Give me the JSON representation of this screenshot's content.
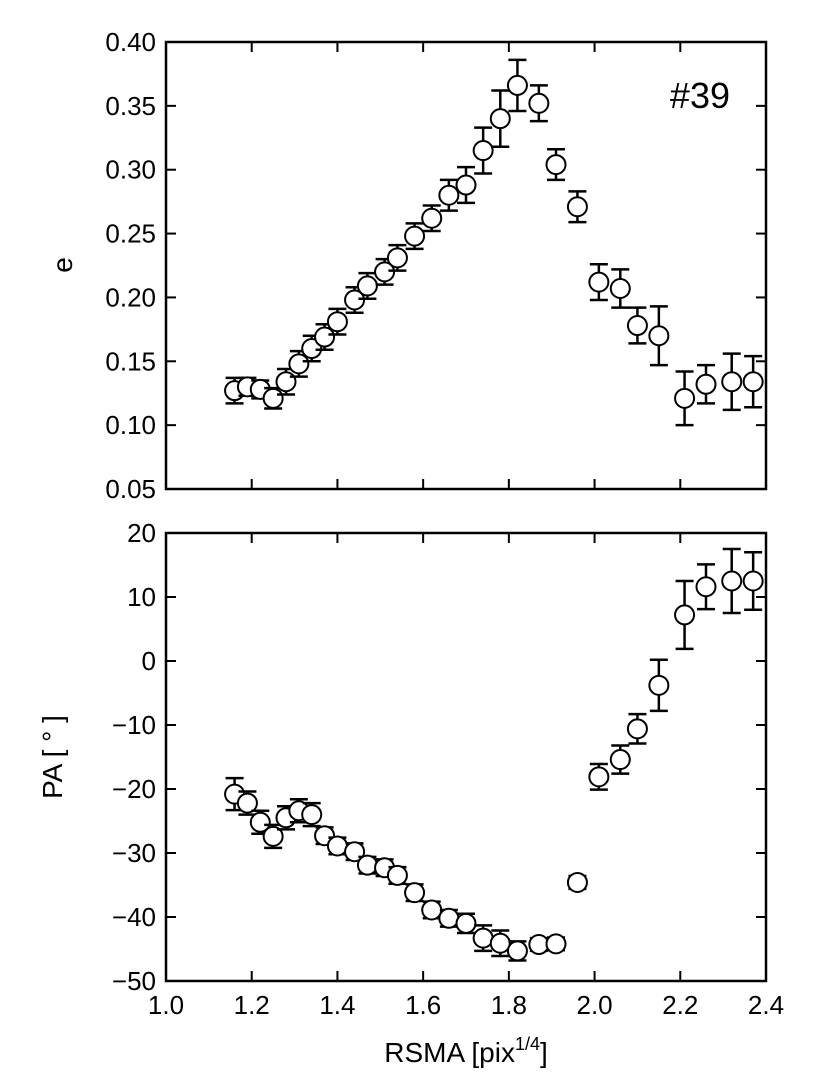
{
  "chart_data": [
    {
      "type": "scatter",
      "annotation": "#39",
      "ylabel": "e",
      "xlim": [
        1.0,
        2.4
      ],
      "ylim": [
        0.05,
        0.4
      ],
      "yticks": [
        "0.05",
        "0.10",
        "0.15",
        "0.20",
        "0.25",
        "0.30",
        "0.35",
        "0.40"
      ],
      "points": [
        {
          "x": 1.16,
          "y": 0.127,
          "err": 0.01
        },
        {
          "x": 1.19,
          "y": 0.13,
          "err": 0.007
        },
        {
          "x": 1.22,
          "y": 0.128,
          "err": 0.007
        },
        {
          "x": 1.25,
          "y": 0.121,
          "err": 0.008
        },
        {
          "x": 1.28,
          "y": 0.134,
          "err": 0.01
        },
        {
          "x": 1.31,
          "y": 0.148,
          "err": 0.01
        },
        {
          "x": 1.34,
          "y": 0.16,
          "err": 0.01
        },
        {
          "x": 1.37,
          "y": 0.169,
          "err": 0.01
        },
        {
          "x": 1.4,
          "y": 0.181,
          "err": 0.01
        },
        {
          "x": 1.44,
          "y": 0.198,
          "err": 0.01
        },
        {
          "x": 1.47,
          "y": 0.209,
          "err": 0.01
        },
        {
          "x": 1.51,
          "y": 0.22,
          "err": 0.01
        },
        {
          "x": 1.54,
          "y": 0.231,
          "err": 0.01
        },
        {
          "x": 1.58,
          "y": 0.248,
          "err": 0.01
        },
        {
          "x": 1.62,
          "y": 0.262,
          "err": 0.01
        },
        {
          "x": 1.66,
          "y": 0.28,
          "err": 0.012
        },
        {
          "x": 1.7,
          "y": 0.288,
          "err": 0.014
        },
        {
          "x": 1.74,
          "y": 0.315,
          "err": 0.018
        },
        {
          "x": 1.78,
          "y": 0.34,
          "err": 0.022
        },
        {
          "x": 1.82,
          "y": 0.366,
          "err": 0.02
        },
        {
          "x": 1.87,
          "y": 0.352,
          "err": 0.014
        },
        {
          "x": 1.91,
          "y": 0.304,
          "err": 0.012
        },
        {
          "x": 1.96,
          "y": 0.271,
          "err": 0.012
        },
        {
          "x": 2.01,
          "y": 0.212,
          "err": 0.014
        },
        {
          "x": 2.06,
          "y": 0.207,
          "err": 0.015
        },
        {
          "x": 2.1,
          "y": 0.178,
          "err": 0.014
        },
        {
          "x": 2.15,
          "y": 0.17,
          "err": 0.023
        },
        {
          "x": 2.21,
          "y": 0.121,
          "err": 0.021
        },
        {
          "x": 2.26,
          "y": 0.132,
          "err": 0.015
        },
        {
          "x": 2.32,
          "y": 0.134,
          "err": 0.022
        },
        {
          "x": 2.37,
          "y": 0.134,
          "err": 0.02
        }
      ]
    },
    {
      "type": "scatter",
      "xlabel_main": "RSMA [pix",
      "xlabel_sup": "1/4",
      "xlabel_end": "]",
      "ylabel": "PA [ ° ]",
      "xlim": [
        1.0,
        2.4
      ],
      "ylim": [
        -50,
        20
      ],
      "xticks": [
        "1.0",
        "1.2",
        "1.4",
        "1.6",
        "1.8",
        "2.0",
        "2.2",
        "2.4"
      ],
      "yticks": [
        "−50",
        "−40",
        "−30",
        "−20",
        "−10",
        "0",
        "10",
        "20"
      ],
      "points": [
        {
          "x": 1.16,
          "y": -20.8,
          "err": 2.5
        },
        {
          "x": 1.19,
          "y": -22.2,
          "err": 1.8
        },
        {
          "x": 1.22,
          "y": -25.2,
          "err": 1.8
        },
        {
          "x": 1.25,
          "y": -27.4,
          "err": 1.8
        },
        {
          "x": 1.28,
          "y": -24.5,
          "err": 1.8
        },
        {
          "x": 1.31,
          "y": -23.4,
          "err": 1.8
        },
        {
          "x": 1.34,
          "y": -24.0,
          "err": 1.8
        },
        {
          "x": 1.37,
          "y": -27.3,
          "err": 1.3
        },
        {
          "x": 1.4,
          "y": -28.9,
          "err": 1.3
        },
        {
          "x": 1.44,
          "y": -29.8,
          "err": 1.3
        },
        {
          "x": 1.47,
          "y": -31.9,
          "err": 1.3
        },
        {
          "x": 1.51,
          "y": -32.3,
          "err": 1.3
        },
        {
          "x": 1.54,
          "y": -33.5,
          "err": 1.3
        },
        {
          "x": 1.58,
          "y": -36.2,
          "err": 1.3
        },
        {
          "x": 1.62,
          "y": -38.9,
          "err": 1.3
        },
        {
          "x": 1.66,
          "y": -40.2,
          "err": 1.3
        },
        {
          "x": 1.7,
          "y": -41.0,
          "err": 1.5
        },
        {
          "x": 1.74,
          "y": -43.3,
          "err": 2.0
        },
        {
          "x": 1.78,
          "y": -44.1,
          "err": 2.0
        },
        {
          "x": 1.82,
          "y": -45.3,
          "err": 1.5
        },
        {
          "x": 1.87,
          "y": -44.3,
          "err": 1.0
        },
        {
          "x": 1.91,
          "y": -44.2,
          "err": 1.0
        },
        {
          "x": 1.96,
          "y": -34.6,
          "err": 1.0
        },
        {
          "x": 2.01,
          "y": -18.1,
          "err": 2.0
        },
        {
          "x": 2.06,
          "y": -15.4,
          "err": 2.2
        },
        {
          "x": 2.1,
          "y": -10.6,
          "err": 2.3
        },
        {
          "x": 2.15,
          "y": -3.8,
          "err": 4.0
        },
        {
          "x": 2.21,
          "y": 7.2,
          "err": 5.3
        },
        {
          "x": 2.26,
          "y": 11.6,
          "err": 3.5
        },
        {
          "x": 2.32,
          "y": 12.5,
          "err": 5.0
        },
        {
          "x": 2.37,
          "y": 12.5,
          "err": 4.5
        }
      ]
    }
  ]
}
